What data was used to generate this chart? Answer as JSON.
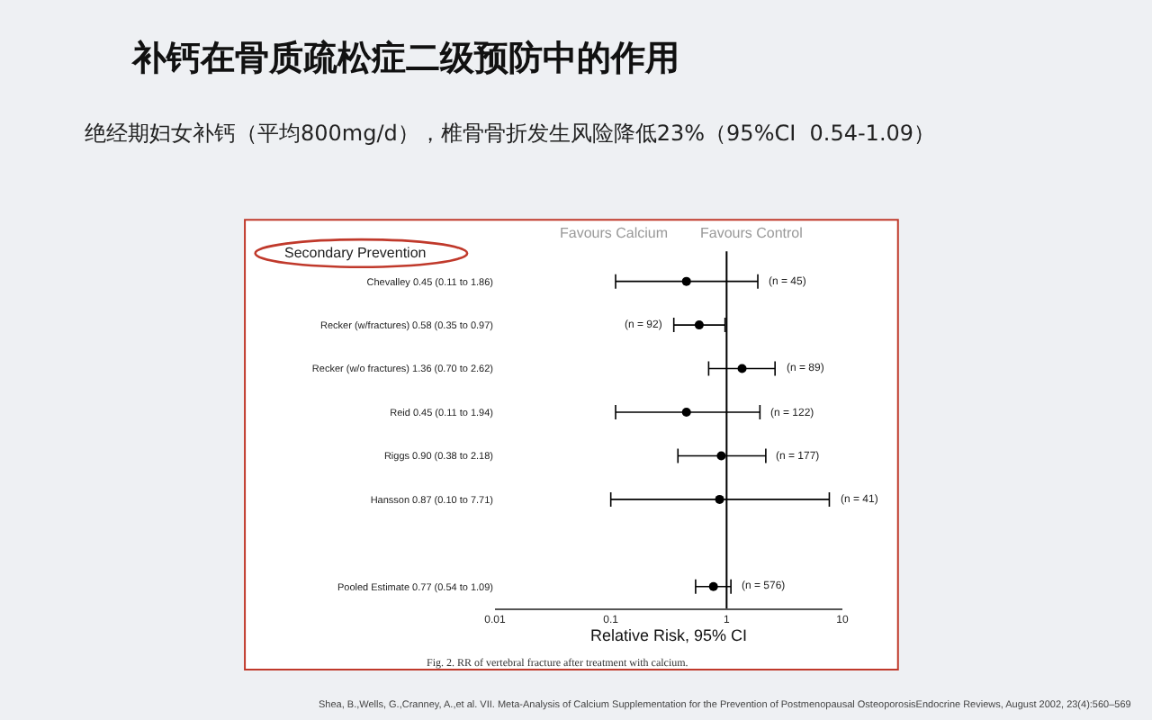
{
  "chart_data": {
    "type": "scatter",
    "orientation": "horizontal",
    "title": "补钙在骨质疏松症二级预防中的作用",
    "subtitle": "绝经期妇女补钙（平均800mg/d），椎骨骨折发生风险降低23%（95%CI  0.54-1.09）",
    "xlabel": "Relative Risk, 95% CI",
    "categories": [
      "Chevalley 0.45 (0.11 to 1.86)",
      "Recker (w/fractures) 0.58 (0.35 to 0.97)",
      "Recker (w/o fractures) 1.36 (0.70 to 2.62)",
      "Reid 0.45 (0.11 to 1.94)",
      "Riggs 0.90 (0.38 to 2.18)",
      "Hansson 0.87 (0.10 to 7.71)",
      null,
      "Pooled Estimate 0.77 (0.54 to 1.09)"
    ],
    "values": [
      0.45,
      0.58,
      1.36,
      0.45,
      0.9,
      0.87,
      null,
      0.77
    ],
    "errors": [
      [
        0.11,
        1.86
      ],
      [
        0.35,
        0.97
      ],
      [
        0.7,
        2.62
      ],
      [
        0.11,
        1.94
      ],
      [
        0.38,
        2.18
      ],
      [
        0.1,
        7.71
      ],
      null,
      [
        0.54,
        1.09
      ]
    ],
    "color": "#000000",
    "marker": "circle",
    "log": "x",
    "xlim": [
      0.01,
      10
    ],
    "xticks": [
      0.01,
      0.1,
      1,
      10
    ],
    "grid": false,
    "legend": false,
    "ref_lines": [
      {
        "axis": "x",
        "value": 1,
        "label": null
      }
    ],
    "annotations": [
      "Favours Calcium",
      "Favours Control",
      "Secondary Prevention",
      "(n = 45)",
      "(n = 92)",
      "(n = 89)",
      "(n = 122)",
      "(n = 177)",
      "(n = 41)",
      "(n = 576)",
      "Fig. 2. RR of vertebral fracture after treatment with calcium.",
      "Shea, B.,Wells, G.,Cranney, A.,et al. VII. Meta-Analysis of Calcium Supplementation for the Prevention of Postmenopausal OsteoporosisEndocrine Reviews, August 2002, 23(4):560–569"
    ]
  }
}
